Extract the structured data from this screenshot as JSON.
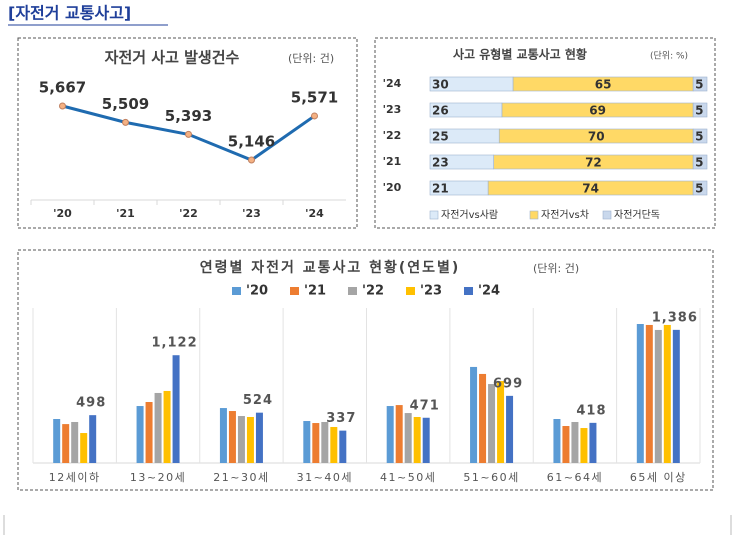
{
  "header": {
    "title": "[자전거 교통사고]"
  },
  "chart_data": [
    {
      "type": "line",
      "title": "자전거 사고 발생건수",
      "subtitle": "(단위: 건)",
      "categories": [
        "'20",
        "'21",
        "'22",
        "'23",
        "'24"
      ],
      "values": [
        5667,
        5509,
        5393,
        5146,
        5571
      ],
      "value_labels": [
        "5,667",
        "5,509",
        "5,393",
        "5,146",
        "5,571"
      ],
      "color": "#1f6bb0"
    },
    {
      "type": "bar",
      "orientation": "horizontal",
      "stacked": true,
      "title": "사고 유형별 교통사고 현황",
      "subtitle": "(단위: %)",
      "categories": [
        "'24",
        "'23",
        "'22",
        "'21",
        "'20"
      ],
      "series": [
        {
          "name": "자전거vs사람",
          "color": "#dceaf8",
          "values": [
            30,
            26,
            25,
            23,
            21
          ]
        },
        {
          "name": "자전거vs차",
          "color": "#ffd966",
          "values": [
            65,
            69,
            70,
            72,
            74
          ]
        },
        {
          "name": "자전거단독",
          "color": "#c9d8ec",
          "values": [
            5,
            5,
            5,
            5,
            5
          ]
        }
      ]
    },
    {
      "type": "bar",
      "orientation": "vertical",
      "stacked": false,
      "title": "연령별 자전거 교통사고 현황(연도별)",
      "subtitle": "(단위: 건)",
      "categories": [
        "12세이하",
        "13~20세",
        "21~30세",
        "31~40세",
        "41~50세",
        "51~60세",
        "61~64세",
        "65세 이상"
      ],
      "series": [
        {
          "name": "'20",
          "color": "#5b9bd5",
          "values": [
            458,
            593,
            572,
            437,
            593,
            1000,
            458,
            1447
          ]
        },
        {
          "name": "'21",
          "color": "#ed7d31",
          "values": [
            405,
            635,
            541,
            416,
            603,
            927,
            385,
            1437
          ]
        },
        {
          "name": "'22",
          "color": "#a5a5a5",
          "values": [
            427,
            729,
            489,
            427,
            520,
            822,
            427,
            1385
          ]
        },
        {
          "name": "'23",
          "color": "#ffc000",
          "values": [
            312,
            750,
            479,
            375,
            479,
            853,
            364,
            1437
          ]
        },
        {
          "name": "'24",
          "color": "#4472c4",
          "values": [
            498,
            1122,
            524,
            337,
            471,
            699,
            418,
            1386
          ],
          "value_labels": [
            "498",
            "1,122",
            "524",
            "337",
            "471",
            "699",
            "418",
            "1,386"
          ]
        }
      ]
    }
  ]
}
